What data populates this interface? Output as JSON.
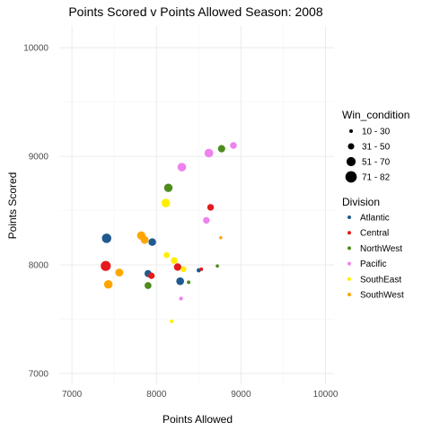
{
  "chart_data": {
    "type": "scatter",
    "title": "Points Scored v Points Allowed Season:  2008",
    "xlabel": "Points Allowed",
    "ylabel": "Points Scored",
    "xlim": [
      6850,
      10100
    ],
    "ylim": [
      6900,
      10200
    ],
    "x_ticks": [
      7000,
      8000,
      9000,
      10000
    ],
    "y_ticks": [
      7000,
      8000,
      9000,
      10000
    ],
    "grid": true,
    "legend_placement": "right",
    "size_legend": {
      "title": "Win_condition",
      "entries": [
        {
          "label": "10 - 30",
          "value": 20
        },
        {
          "label": "31 - 50",
          "value": 40
        },
        {
          "label": "51 - 70",
          "value": 60
        },
        {
          "label": "71 - 82",
          "value": 76
        }
      ]
    },
    "color_legend": {
      "title": "Division",
      "entries": [
        {
          "label": "Atlantic",
          "color": "#1f5a8f"
        },
        {
          "label": "Central",
          "color": "#e41a1c"
        },
        {
          "label": "NorthWest",
          "color": "#4d8c1a"
        },
        {
          "label": "Pacific",
          "color": "#ee82ee"
        },
        {
          "label": "SouthEast",
          "color": "#ffee00"
        },
        {
          "label": "SouthWest",
          "color": "#ffa500"
        }
      ]
    },
    "points": [
      {
        "x": 7410,
        "y": 8245,
        "wins": 62,
        "division": "Atlantic"
      },
      {
        "x": 7950,
        "y": 8210,
        "wins": 49,
        "division": "Atlantic"
      },
      {
        "x": 7900,
        "y": 7920,
        "wins": 45,
        "division": "Atlantic"
      },
      {
        "x": 8280,
        "y": 7850,
        "wins": 50,
        "division": "Atlantic"
      },
      {
        "x": 8500,
        "y": 7950,
        "wins": 25,
        "division": "Atlantic"
      },
      {
        "x": 7400,
        "y": 7990,
        "wins": 66,
        "division": "Central"
      },
      {
        "x": 7940,
        "y": 7900,
        "wins": 41,
        "division": "Central"
      },
      {
        "x": 8250,
        "y": 7980,
        "wins": 48,
        "division": "Central"
      },
      {
        "x": 8530,
        "y": 7960,
        "wins": 20,
        "division": "Central"
      },
      {
        "x": 8640,
        "y": 8530,
        "wins": 42,
        "division": "Central"
      },
      {
        "x": 8140,
        "y": 8710,
        "wins": 55,
        "division": "NorthWest"
      },
      {
        "x": 8770,
        "y": 9070,
        "wins": 47,
        "division": "NorthWest"
      },
      {
        "x": 7900,
        "y": 7810,
        "wins": 44,
        "division": "NorthWest"
      },
      {
        "x": 8380,
        "y": 7840,
        "wins": 20,
        "division": "NorthWest"
      },
      {
        "x": 8720,
        "y": 7990,
        "wins": 18,
        "division": "NorthWest"
      },
      {
        "x": 8300,
        "y": 8900,
        "wins": 56,
        "division": "Pacific"
      },
      {
        "x": 8620,
        "y": 9030,
        "wins": 57,
        "division": "Pacific"
      },
      {
        "x": 8910,
        "y": 9100,
        "wins": 43,
        "division": "Pacific"
      },
      {
        "x": 8590,
        "y": 8410,
        "wins": 42,
        "division": "Pacific"
      },
      {
        "x": 8290,
        "y": 7690,
        "wins": 22,
        "division": "Pacific"
      },
      {
        "x": 8110,
        "y": 8570,
        "wins": 56,
        "division": "SouthEast"
      },
      {
        "x": 8120,
        "y": 8090,
        "wins": 37,
        "division": "SouthEast"
      },
      {
        "x": 8210,
        "y": 8040,
        "wins": 43,
        "division": "SouthEast"
      },
      {
        "x": 8320,
        "y": 7960,
        "wins": 36,
        "division": "SouthEast"
      },
      {
        "x": 8180,
        "y": 7480,
        "wins": 20,
        "division": "SouthEast"
      },
      {
        "x": 7820,
        "y": 8270,
        "wins": 55,
        "division": "SouthWest"
      },
      {
        "x": 7860,
        "y": 8230,
        "wins": 50,
        "division": "SouthWest"
      },
      {
        "x": 7560,
        "y": 7930,
        "wins": 51,
        "division": "SouthWest"
      },
      {
        "x": 7430,
        "y": 7820,
        "wins": 56,
        "division": "SouthWest"
      },
      {
        "x": 8760,
        "y": 8250,
        "wins": 17,
        "division": "SouthWest"
      }
    ]
  }
}
